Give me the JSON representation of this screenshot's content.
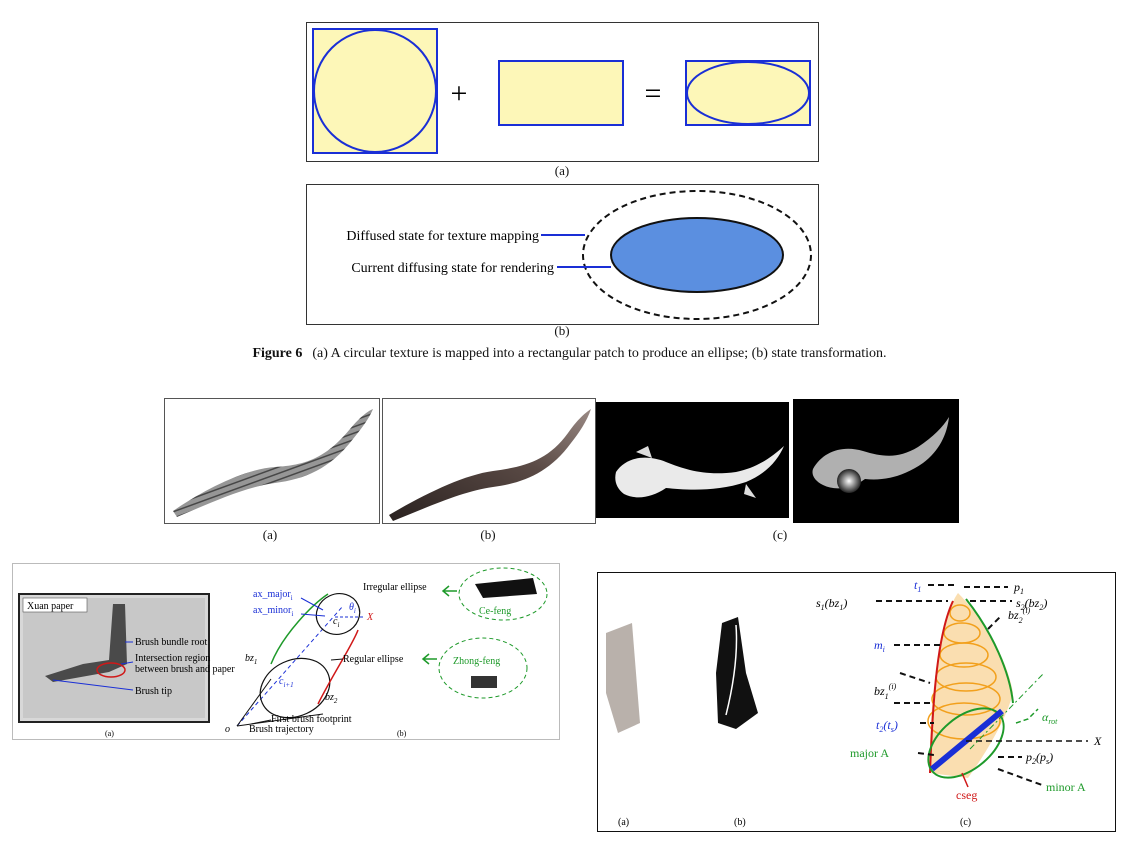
{
  "fig6": {
    "panel_a": {
      "plus": "+",
      "equals": "=",
      "label": "(a)"
    },
    "panel_b": {
      "diffused_label": "Diffused state for texture mapping",
      "current_label": "Current diffusing state for rendering",
      "label": "(b)"
    },
    "caption": {
      "prefix": "Figure 6",
      "text": "(a) A circular texture is mapped into a rectangular patch to produce an ellipse; (b) state transformation."
    }
  },
  "strokes": {
    "labels": [
      "(a)",
      "(b)",
      "(c)"
    ]
  },
  "brush_model": {
    "xuan_paper": "Xuan paper",
    "bundle_root": "Brush bundle root",
    "intersection_1": "Intersection region",
    "intersection_2": "between brush and paper",
    "brush_tip": "Brush tip",
    "ax_major": "ax_major",
    "ax_major_sub": "i",
    "ax_minor": "ax_minor",
    "ax_minor_sub": "i",
    "c_i": "c",
    "c_i_sub": "i",
    "theta": "θ",
    "theta_sub": "i",
    "x_axis": "X",
    "irregular": "Irregular ellipse",
    "regular": "Regular ellipse",
    "ce_feng": "Ce-feng",
    "zhong_feng": "Zhong-feng",
    "bz1": "bz",
    "bz1_sub": "1",
    "bz2": "bz",
    "bz2_sub": "2",
    "c_i1": "c",
    "c_i1_sub": "i+1",
    "first_footprint": "First brush footprint",
    "trajectory": "Brush trajectory",
    "origin": "o",
    "label_a": "(a)",
    "label_b": "(b)"
  },
  "ellipse_model": {
    "t1": "t",
    "t1_sub": "1",
    "p1": "p",
    "p1_sub": "1",
    "s1": "s",
    "s1_sub": "1",
    "s1_arg": "(bz",
    "s1_arg_sub": "1",
    "s2": "s",
    "s2_sub": "2",
    "s2_arg": "(bz",
    "s2_arg_sub": "2",
    "mi": "m",
    "mi_sub": "i",
    "bz2i": "bz",
    "bz2i_sub": "2",
    "bz2i_sup": "(i)",
    "bz1i": "bz",
    "bz1i_sub": "1",
    "bz1i_sup": "(i)",
    "t2": "t",
    "t2_sub": "2",
    "t2_arg": "(t",
    "t2_arg_sub": "s",
    "alpha": "α",
    "alpha_sub": "rot",
    "x_axis": "X",
    "major": "major A",
    "minor": "minor A",
    "p2": "p",
    "p2_sub": "2",
    "p2_arg": "(p",
    "p2_arg_sub": "s",
    "cseg": "cseg",
    "label_a": "(a)",
    "label_b": "(b)",
    "label_c": "(c)"
  },
  "colors": {
    "cream": "#fdf7b8",
    "blue_line": "#1a2fd6",
    "fill_blue": "#5b8fe0",
    "ink": "#111111",
    "green": "#1e9a2a",
    "orange": "#f2a01c"
  }
}
